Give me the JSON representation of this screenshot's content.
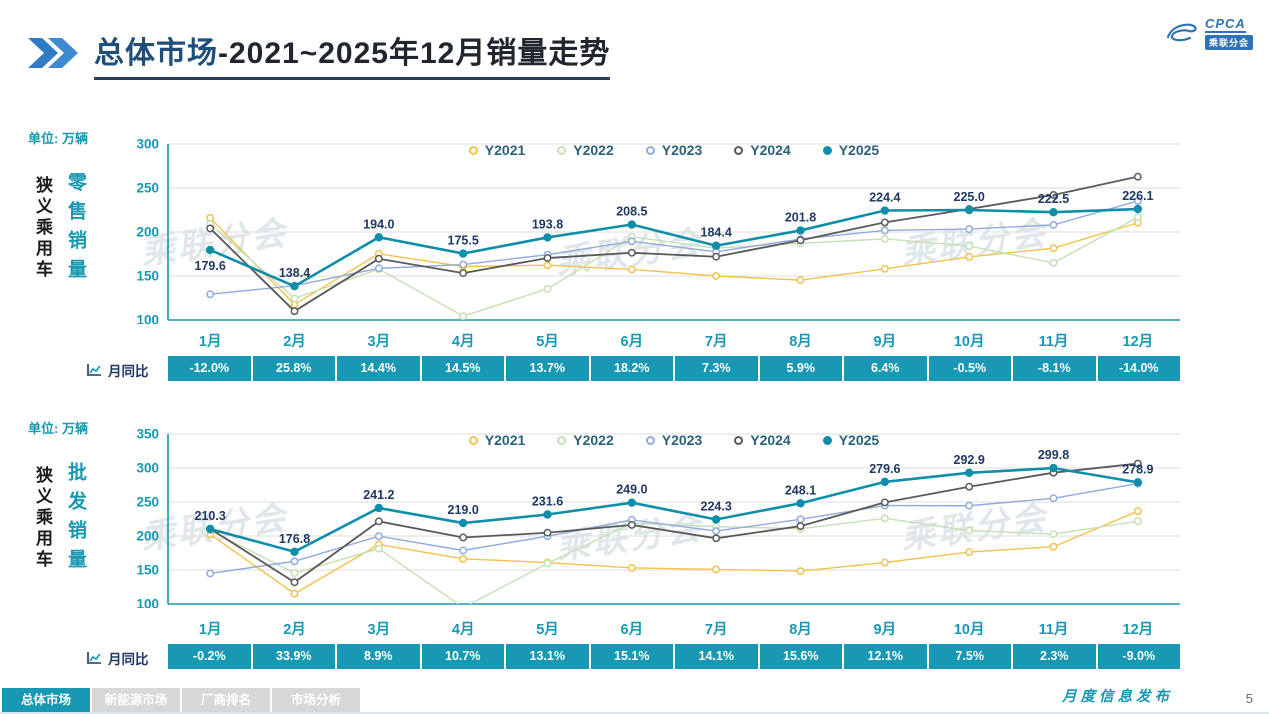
{
  "header": {
    "title_primary": "总体市场",
    "title_rest": "-2021~2025年12月销量走势",
    "logo_cpca": "CPCA",
    "logo_name": "乘联分会"
  },
  "watermark": "乘联分会",
  "colors": {
    "teal": "#1898B2",
    "navy": "#1F3864",
    "grid": "#DCDCDC",
    "logo_blue": "#2E74B5",
    "tab_inactive": "#D8D8D8"
  },
  "charts": [
    {
      "unit_label": "单位: 万辆",
      "side_label_group": "狭义乘用车",
      "side_label_metric": "零售销量",
      "yoy_label": "月同比",
      "yoy_values": [
        "-12.0%",
        "25.8%",
        "14.4%",
        "14.5%",
        "13.7%",
        "18.2%",
        "7.3%",
        "5.9%",
        "6.4%",
        "-0.5%",
        "-8.1%",
        "-14.0%"
      ],
      "chart_data": {
        "type": "line",
        "title": "狭义乘用车零售销量(万辆) 2021-2025逐月",
        "categories": [
          "1月",
          "2月",
          "3月",
          "4月",
          "5月",
          "6月",
          "7月",
          "8月",
          "9月",
          "10月",
          "11月",
          "12月"
        ],
        "ylim": [
          100,
          300
        ],
        "ytick_step": 50,
        "grid": "horizontal",
        "legend_position": "top-center",
        "label_below_indices": [
          0
        ],
        "series": [
          {
            "name": "Y2021",
            "color": "#F1C24D",
            "marker": "hollow",
            "width": 1.4,
            "values": [
              216.0,
              117.7,
              175.2,
              160.8,
              162.3,
              157.5,
              150.1,
              145.3,
              158.2,
              171.7,
              181.6,
              210.5
            ]
          },
          {
            "name": "Y2022",
            "color": "#C5E0B4",
            "marker": "hollow",
            "width": 1.4,
            "values": [
              209.2,
              124.6,
              157.9,
              104.3,
              135.4,
              194.4,
              181.8,
              187.1,
              192.2,
              184.0,
              164.9,
              216.9
            ]
          },
          {
            "name": "Y2023",
            "color": "#8FAADC",
            "marker": "hollow",
            "width": 1.4,
            "values": [
              129.3,
              139.0,
              158.7,
              163.0,
              174.2,
              189.4,
              177.5,
              192.0,
              201.8,
              203.3,
              208.1,
              235.3
            ]
          },
          {
            "name": "Y2024",
            "color": "#595959",
            "marker": "hollow",
            "width": 1.8,
            "values": [
              204.1,
              110.0,
              169.6,
              153.3,
              170.4,
              176.4,
              171.9,
              190.6,
              210.9,
              226.1,
              242.1,
              262.9
            ]
          },
          {
            "name": "Y2025",
            "color": "#0E8EA8",
            "marker": "filled",
            "width": 2.6,
            "labeled": true,
            "values": [
              179.6,
              138.4,
              194.0,
              175.5,
              193.8,
              208.5,
              184.4,
              201.8,
              224.4,
              225.0,
              222.5,
              226.1
            ]
          }
        ]
      }
    },
    {
      "unit_label": "单位: 万辆",
      "side_label_group": "狭义乘用车",
      "side_label_metric": "批发销量",
      "yoy_label": "月同比",
      "yoy_values": [
        "-0.2%",
        "33.9%",
        "8.9%",
        "10.7%",
        "13.1%",
        "15.1%",
        "14.1%",
        "15.6%",
        "12.1%",
        "7.5%",
        "2.3%",
        "-9.0%"
      ],
      "chart_data": {
        "type": "line",
        "title": "狭义乘用车批发销量(万辆) 2021-2025逐月",
        "categories": [
          "1月",
          "2月",
          "3月",
          "4月",
          "5月",
          "6月",
          "7月",
          "8月",
          "9月",
          "10月",
          "11月",
          "12月"
        ],
        "ylim": [
          100,
          350
        ],
        "ytick_step": 50,
        "grid": "horizontal",
        "legend_position": "top-center",
        "label_below_indices": [],
        "series": [
          {
            "name": "Y2021",
            "color": "#F1C24D",
            "marker": "hollow",
            "width": 1.4,
            "values": [
              202.5,
              115.2,
              187.5,
              166.5,
              161.0,
              153.1,
              150.8,
              148.5,
              161.0,
              176.4,
              184.2,
              236.5
            ]
          },
          {
            "name": "Y2022",
            "color": "#C5E0B4",
            "marker": "hollow",
            "width": 1.4,
            "values": [
              208.3,
              145.4,
              181.4,
              94.6,
              159.7,
              218.9,
              213.8,
              210.7,
              226.0,
              207.9,
              202.9,
              221.6
            ]
          },
          {
            "name": "Y2023",
            "color": "#8FAADC",
            "marker": "hollow",
            "width": 1.4,
            "values": [
              144.9,
              162.8,
              199.7,
              178.7,
              199.7,
              223.7,
              207.3,
              224.5,
              244.7,
              244.5,
              255.5,
              277.1
            ]
          },
          {
            "name": "Y2024",
            "color": "#595959",
            "marker": "hollow",
            "width": 1.8,
            "values": [
              210.7,
              132.0,
              221.5,
              197.8,
              204.8,
              216.3,
              196.6,
              214.6,
              249.4,
              272.5,
              293.1,
              306.5
            ]
          },
          {
            "name": "Y2025",
            "color": "#0E8EA8",
            "marker": "filled",
            "width": 2.6,
            "labeled": true,
            "values": [
              210.3,
              176.8,
              241.2,
              219.0,
              231.6,
              249.0,
              224.3,
              248.1,
              279.6,
              292.9,
              299.8,
              278.9
            ]
          }
        ]
      }
    }
  ],
  "footer": {
    "tabs": [
      {
        "label": "总体市场",
        "active": true
      },
      {
        "label": "新能源市场",
        "active": false
      },
      {
        "label": "厂商排名",
        "active": false
      },
      {
        "label": "市场分析",
        "active": false
      }
    ],
    "publication": "月度信息发布",
    "page_number": "5"
  }
}
